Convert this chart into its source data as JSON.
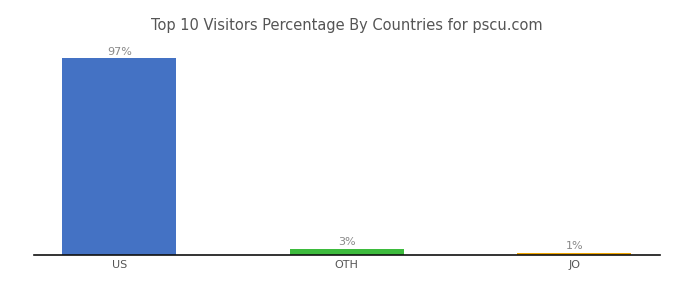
{
  "categories": [
    "US",
    "OTH",
    "JO"
  ],
  "values": [
    97,
    3,
    1
  ],
  "bar_colors": [
    "#4472c4",
    "#3dbb3d",
    "#f0a500"
  ],
  "title": "Top 10 Visitors Percentage By Countries for pscu.com",
  "ylim": [
    0,
    108
  ],
  "label_fontsize": 8,
  "tick_fontsize": 8,
  "title_fontsize": 10.5,
  "background_color": "#ffffff",
  "label_color": "#888888"
}
